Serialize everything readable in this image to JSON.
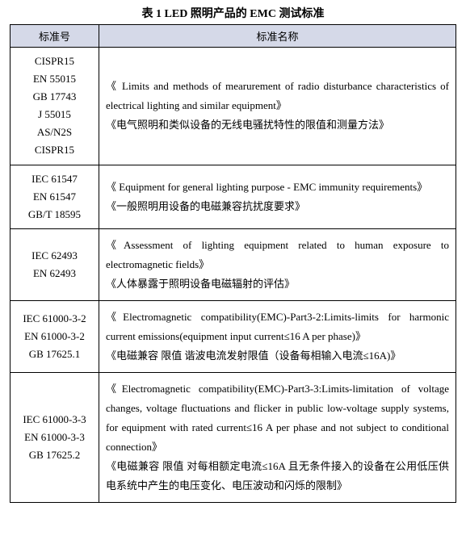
{
  "title": "表 1 LED 照明产品的 EMC 测试标准",
  "columns": {
    "c1": "标准号",
    "c2": "标准名称"
  },
  "rows": [
    {
      "stds": [
        "CISPR15",
        "EN 55015",
        "GB 17743",
        "J 55015",
        "AS/N2S",
        "CISPR15"
      ],
      "desc_en": "《 Limits and methods of mearurement of radio disturbance characteristics of electrical lighting and similar equipment》",
      "desc_cn": "《电气照明和类似设备的无线电骚扰特性的限值和测量方法》"
    },
    {
      "stds": [
        "IEC 61547",
        "EN 61547",
        "GB/T 18595"
      ],
      "desc_en": "《 Equipment for general lighting purpose - EMC immunity requirements》",
      "desc_cn": "《一般照明用设备的电磁兼容抗扰度要求》"
    },
    {
      "stds": [
        "IEC 62493",
        "EN 62493"
      ],
      "desc_en": "《Assessment of lighting equipment related to human exposure to electromagnetic fields》",
      "desc_cn": "《人体暴露于照明设备电磁辐射的评估》"
    },
    {
      "stds": [
        "IEC 61000-3-2",
        "EN 61000-3-2",
        "GB 17625.1"
      ],
      "desc_en": "《Electromagnetic compatibility(EMC)-Part3-2:Limits-limits for harmonic current emissions(equipment input current≤16 A per phase)》",
      "desc_cn": "《电磁兼容 限值 谐波电流发射限值（设备每相输入电流≤16A)》"
    },
    {
      "stds": [
        "IEC 61000-3-3",
        "EN 61000-3-3",
        "GB 17625.2"
      ],
      "desc_en": "《Electromagnetic compatibility(EMC)-Part3-3:Limits-limitation of voltage changes, voltage fluctuations and flicker in public low-voltage supply systems, for equipment with rated current≤16 A per phase and not subject to conditional connection》",
      "desc_cn": "《电磁兼容 限值 对每相额定电流≤16A 且无条件接入的设备在公用低压供电系统中产生的电压变化、电压波动和闪烁的限制》"
    }
  ]
}
